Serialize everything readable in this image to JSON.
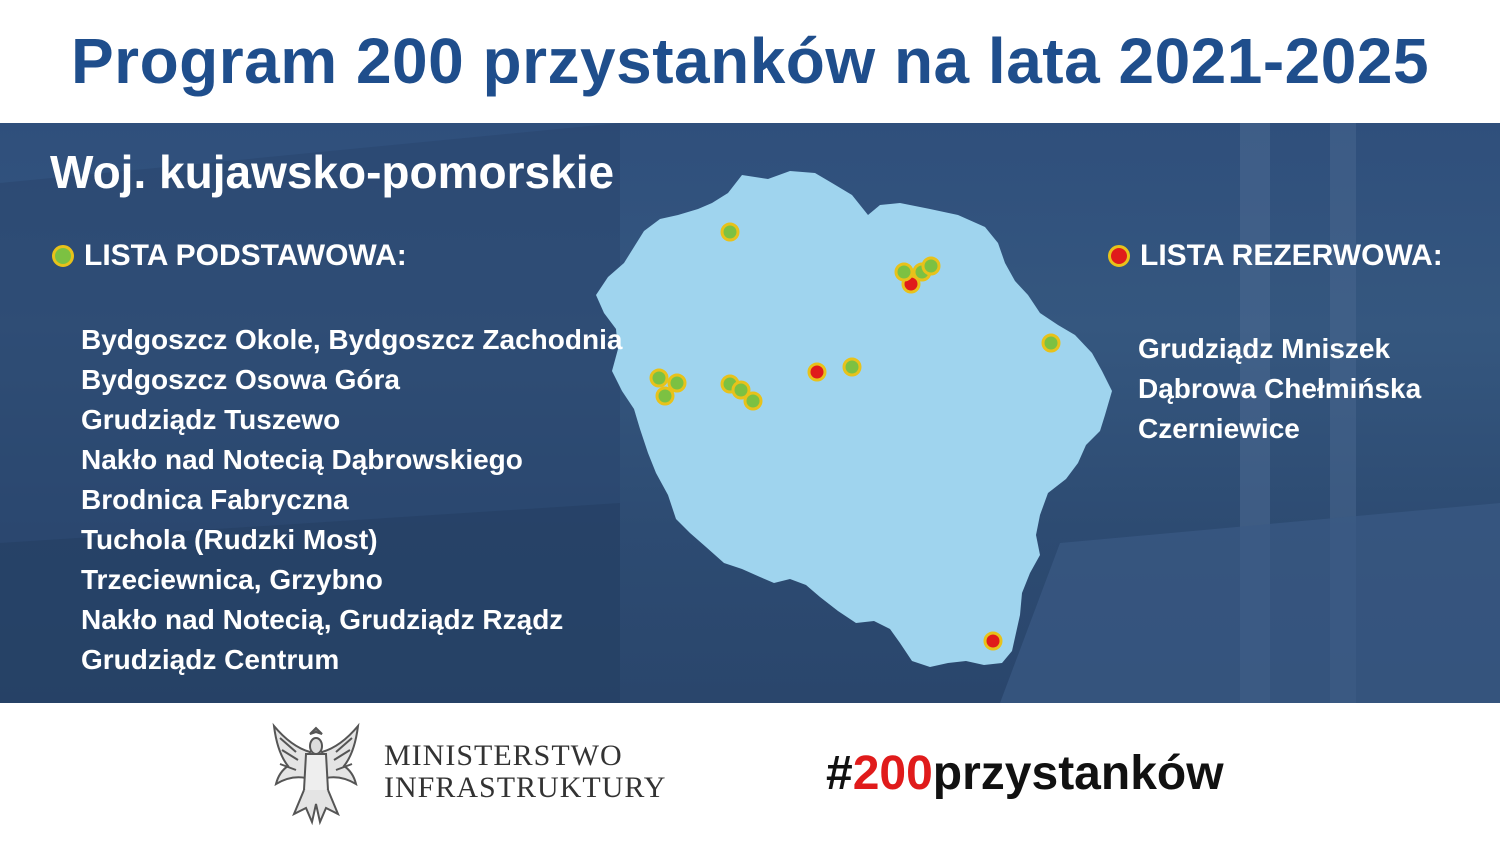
{
  "title": "Program 200 przystanków na lata 2021-2025",
  "region": "Woj. kujawsko-pomorskie",
  "basic_list": {
    "heading": "LISTA PODSTAWOWA:",
    "items": [
      "Bydgoszcz Okole, Bydgoszcz Zachodnia",
      "Bydgoszcz Osowa Góra",
      "Grudziądz Tuszewo",
      "Nakło nad Notecią Dąbrowskiego",
      "Brodnica Fabryczna",
      "Tuchola (Rudzki Most)",
      "Trzeciewnica, Grzybno",
      "Nakło nad Notecią, Grudziądz Rządz",
      "Grudziądz Centrum"
    ],
    "marker_color": "#7cc142"
  },
  "reserve_list": {
    "heading": "LISTA REZERWOWA:",
    "items": [
      "Grudziądz Mniszek",
      "Dąbrowa Chełmińska",
      "Czerniewice"
    ],
    "marker_color": "#e01b1b"
  },
  "colors": {
    "title": "#1f4e8c",
    "map_fill": "#9fd4ee",
    "banner": "#2f4f7c",
    "marker_border": "#e8c21a"
  },
  "footer": {
    "ministry_line1": "MINISTERSTWO",
    "ministry_line2": "INFRASTRUKTURY",
    "hashtag_prefix": "#",
    "hashtag_number": "200",
    "hashtag_suffix": "przystanków",
    "emblem_icon": "polish-eagle-emblem"
  }
}
